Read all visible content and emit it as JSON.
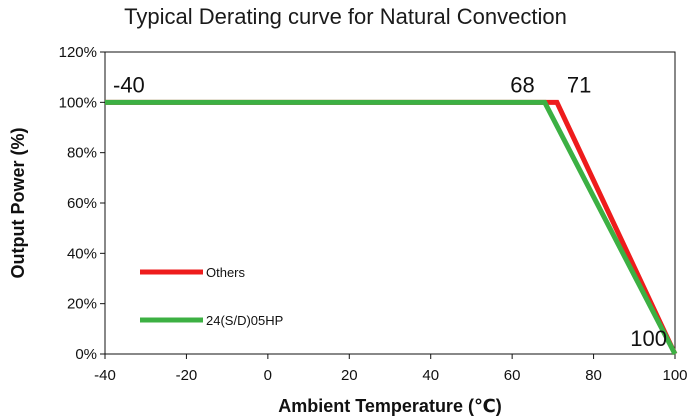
{
  "chart_data": {
    "type": "line",
    "title": "Typical Derating curve for Natural Convection",
    "xlabel": "Ambient Temperature (℃)",
    "ylabel": "Output Power (%)",
    "xlim": [
      -40,
      100
    ],
    "ylim": [
      0,
      120
    ],
    "x_ticks": [
      "-40",
      "-20",
      "0",
      "20",
      "40",
      "60",
      "80",
      "100"
    ],
    "y_ticks": [
      "0%",
      "20%",
      "40%",
      "60%",
      "80%",
      "100%",
      "120%"
    ],
    "grid": false,
    "legend_position": "bottom-left",
    "series": [
      {
        "name": "Others",
        "color": "#ee1c1c",
        "x": [
          -40,
          71,
          100
        ],
        "y": [
          100,
          100,
          0
        ]
      },
      {
        "name": "24(S/D)05HP",
        "color": "#3cb043",
        "x": [
          -40,
          68,
          100
        ],
        "y": [
          100,
          100,
          0
        ]
      }
    ],
    "annotations": [
      {
        "text": "-40",
        "x": -40,
        "y": 100
      },
      {
        "text": "68",
        "x": 68,
        "y": 100
      },
      {
        "text": "71",
        "x": 71,
        "y": 100
      },
      {
        "text": "100",
        "x": 100,
        "y": 0
      }
    ]
  }
}
